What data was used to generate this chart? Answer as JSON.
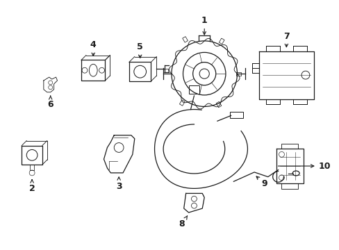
{
  "background_color": "#ffffff",
  "line_color": "#1a1a1a",
  "lw": 0.9,
  "figure_width": 4.89,
  "figure_height": 3.6,
  "dpi": 100
}
